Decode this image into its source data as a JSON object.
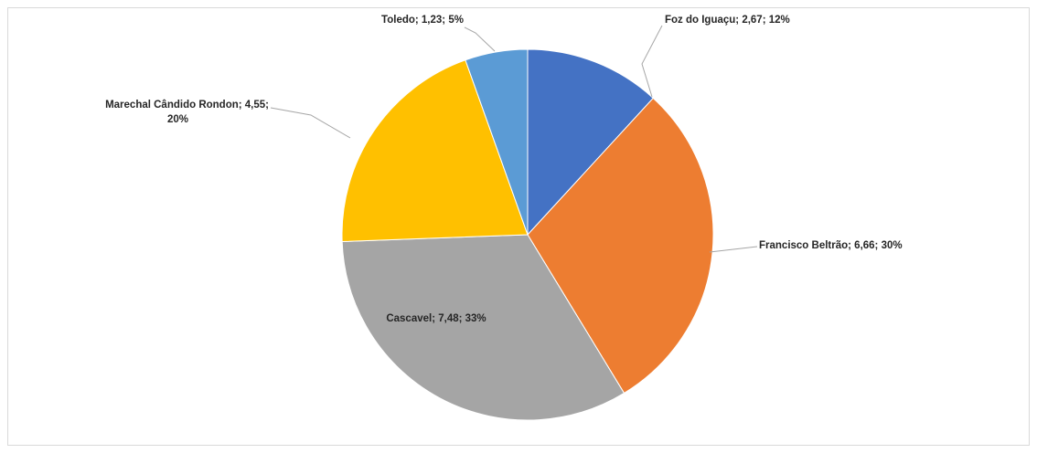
{
  "chart_data": {
    "type": "pie",
    "title": "",
    "start_angle_deg": 0,
    "direction": "clockwise",
    "slices": [
      {
        "name": "Foz do Iguaçu",
        "value": 2.67,
        "percent": 12,
        "color": "#4472C4",
        "label_lines": [
          "Foz do Iguaçu; 2,67; 12%"
        ],
        "label_position": "outside-top-right"
      },
      {
        "name": "Francisco Beltrão",
        "value": 6.66,
        "percent": 30,
        "color": "#ED7D31",
        "label_lines": [
          "Francisco Beltrão; 6,66; 30%"
        ],
        "label_position": "outside-right"
      },
      {
        "name": "Cascavel",
        "value": 7.48,
        "percent": 33,
        "color": "#A5A5A5",
        "label_lines": [
          "Cascavel; 7,48; 33%"
        ],
        "label_position": "inside"
      },
      {
        "name": "Marechal Cândido Rondon",
        "value": 4.55,
        "percent": 20,
        "color": "#FFC000",
        "label_lines": [
          "Marechal Cândido Rondon; 4,55;",
          "20%"
        ],
        "label_position": "outside-left"
      },
      {
        "name": "Toledo",
        "value": 1.23,
        "percent": 5,
        "color": "#5B9BD5",
        "label_lines": [
          "Toledo; 1,23; 5%"
        ],
        "label_position": "outside-top"
      }
    ],
    "legend": "none",
    "leader_line_color": "#A6A6A6"
  }
}
